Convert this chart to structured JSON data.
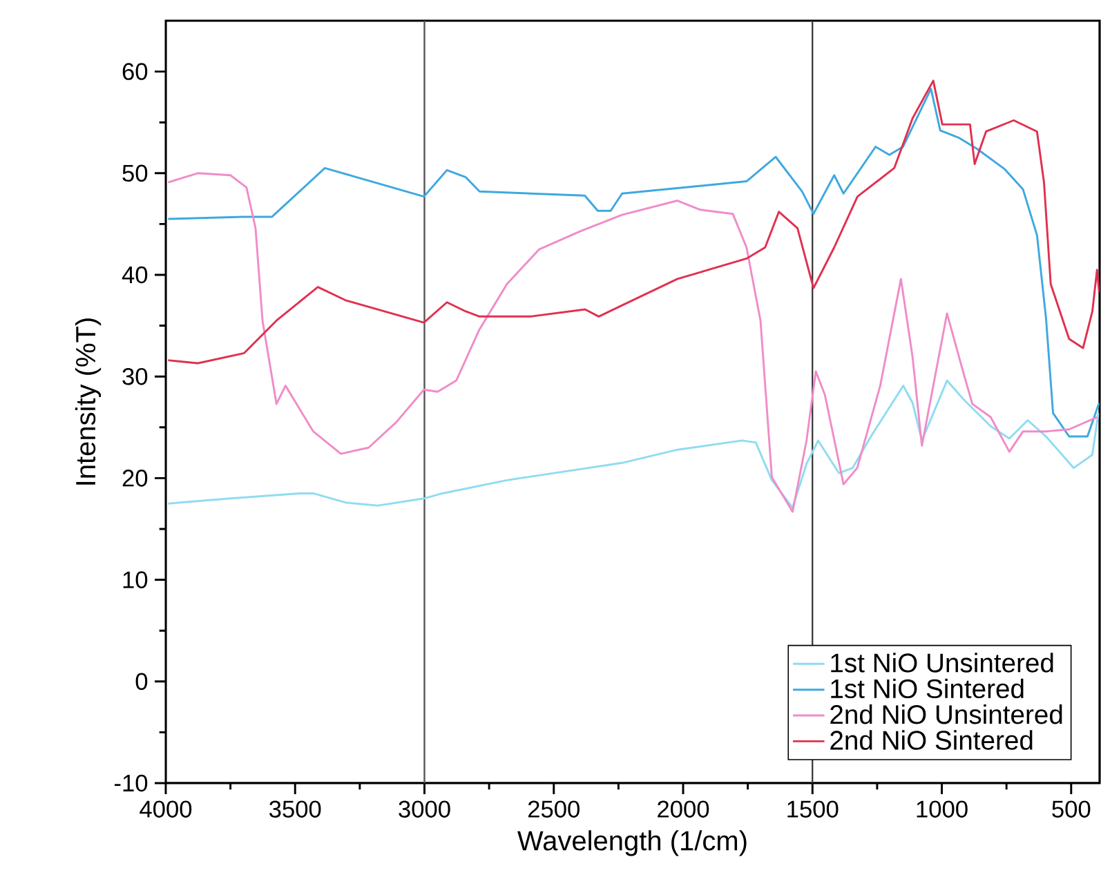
{
  "chart_data": {
    "type": "line",
    "xlabel": "Wavelength (1/cm)",
    "ylabel": "Intensity (%T)",
    "xlim": [
      4000,
      390
    ],
    "xticks": [
      4000,
      3500,
      3000,
      2500,
      2000,
      1500,
      1000,
      500
    ],
    "ylim": [
      -10,
      65
    ],
    "yticks": [
      -10,
      0,
      10,
      20,
      30,
      40,
      50,
      60
    ],
    "grid": false,
    "legend": "bottom right",
    "marker": "none",
    "line_style": "solid",
    "ref_lines": [
      {
        "axis": "x",
        "value": 3000,
        "color": "#555555"
      },
      {
        "axis": "x",
        "value": 1500,
        "color": "#333333"
      }
    ],
    "series": [
      {
        "name": "1st NiO Unsintered",
        "color": "#8fdcf2",
        "x": [
          3991,
          3750,
          3483,
          3430,
          3305,
          3180,
          3002,
          2931,
          2681,
          2236,
          2022,
          1772,
          1719,
          1657,
          1577,
          1523,
          1478,
          1398,
          1345,
          1274,
          1149,
          1113,
          1077,
          980,
          918,
          811,
          739,
          668,
          597,
          490,
          418,
          395
        ],
        "values": [
          17.5,
          18.0,
          18.5,
          18.5,
          17.6,
          17.3,
          18.0,
          18.5,
          19.8,
          21.5,
          22.8,
          23.7,
          23.5,
          19.8,
          17.1,
          21.4,
          23.7,
          20.5,
          21.0,
          24.1,
          29.1,
          27.4,
          23.7,
          29.6,
          27.8,
          25.1,
          23.9,
          25.7,
          24.1,
          21.0,
          22.3,
          26.4
        ]
      },
      {
        "name": "1st NiO Sintered",
        "color": "#3ea8e0",
        "x": [
          3991,
          3700,
          3590,
          3385,
          3002,
          2913,
          2840,
          2787,
          2380,
          2330,
          2280,
          2236,
          1755,
          1642,
          1540,
          1496,
          1416,
          1380,
          1256,
          1203,
          1150,
          1042,
          1006,
          935,
          864,
          757,
          686,
          632,
          597,
          570,
          508,
          437,
          392
        ],
        "values": [
          45.5,
          45.7,
          45.7,
          50.5,
          47.7,
          50.3,
          49.6,
          48.2,
          47.8,
          46.3,
          46.3,
          48.0,
          49.2,
          51.6,
          48.2,
          46.0,
          49.8,
          48.0,
          52.6,
          51.8,
          52.6,
          58.3,
          54.2,
          53.5,
          52.4,
          50.4,
          48.4,
          43.9,
          35.7,
          26.4,
          24.1,
          24.1,
          27.4
        ]
      },
      {
        "name": "2nd NiO Unsintered",
        "color": "#f08cc8",
        "x": [
          3991,
          3876,
          3750,
          3688,
          3653,
          3626,
          3572,
          3537,
          3430,
          3323,
          3216,
          3109,
          3002,
          2949,
          2877,
          2788,
          2681,
          2557,
          2396,
          2236,
          2022,
          1933,
          1808,
          1755,
          1701,
          1675,
          1657,
          1577,
          1523,
          1487,
          1452,
          1380,
          1327,
          1238,
          1158,
          1113,
          1077,
          980,
          918,
          882,
          811,
          739,
          686,
          597,
          508,
          400
        ],
        "values": [
          49.1,
          50.0,
          49.8,
          48.6,
          44.6,
          35.5,
          27.3,
          29.1,
          24.6,
          22.4,
          23.0,
          25.5,
          28.7,
          28.5,
          29.6,
          34.6,
          39.1,
          42.5,
          44.3,
          45.9,
          47.3,
          46.4,
          46.0,
          42.7,
          35.5,
          26.4,
          20.1,
          16.7,
          23.7,
          30.5,
          28.2,
          19.4,
          21.0,
          29.1,
          39.6,
          31.9,
          23.2,
          36.2,
          30.5,
          27.3,
          26.0,
          22.6,
          24.6,
          24.6,
          24.8,
          26.0
        ]
      },
      {
        "name": "2nd NiO Sintered",
        "color": "#e03050",
        "x": [
          3991,
          3876,
          3697,
          3572,
          3412,
          3305,
          3002,
          2913,
          2840,
          2787,
          2592,
          2379,
          2326,
          2236,
          2022,
          1755,
          1683,
          1630,
          1558,
          1496,
          1416,
          1326,
          1184,
          1113,
          1033,
          998,
          891,
          873,
          829,
          722,
          632,
          605,
          579,
          508,
          454,
          418,
          400,
          392
        ],
        "values": [
          31.6,
          31.3,
          32.3,
          35.5,
          38.8,
          37.5,
          35.3,
          37.3,
          36.4,
          35.9,
          35.9,
          36.6,
          35.9,
          37.0,
          39.6,
          41.6,
          42.7,
          46.2,
          44.6,
          38.7,
          42.7,
          47.7,
          50.5,
          55.4,
          59.1,
          54.8,
          54.8,
          50.9,
          54.1,
          55.2,
          54.1,
          49.1,
          39.1,
          33.7,
          32.8,
          36.4,
          40.5,
          38.3
        ]
      }
    ]
  }
}
